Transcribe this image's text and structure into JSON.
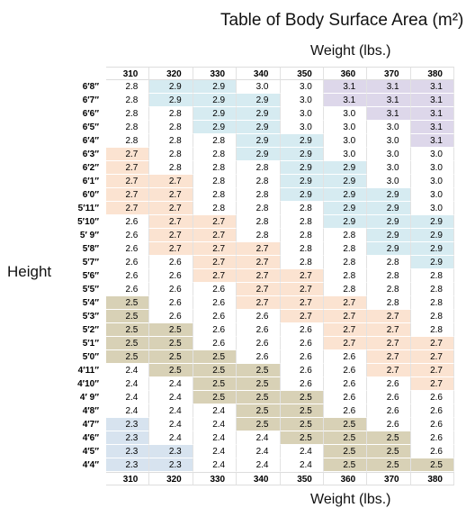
{
  "title": "Table of Body Surface Area (m²)",
  "weight_label_top": "Weight (lbs.)",
  "weight_label_bottom": "Weight (lbs.)",
  "height_label": "Height",
  "table": {
    "columns": [
      "310",
      "320",
      "330",
      "340",
      "350",
      "360",
      "370",
      "380"
    ],
    "row_labels": [
      "6′8″",
      "6′7″",
      "6′6″",
      "6′5″",
      "6′4″",
      "6′3″",
      "6′2″",
      "6′1″",
      "6′0″",
      "5′11″",
      "5′10″",
      "5′ 9″",
      "5′8″",
      "5′7″",
      "5′6″",
      "5′5″",
      "5′4″",
      "5′3″",
      "5′2″",
      "5′1″",
      "5′0″",
      "4′11″",
      "4′10″",
      "4′ 9″",
      "4′8″",
      "4′7″",
      "4′6″",
      "4′5″",
      "4′4″"
    ],
    "rows": [
      [
        "2.8",
        "2.9",
        "2.9",
        "3.0",
        "3.0",
        "3.1",
        "3.1",
        "3.1"
      ],
      [
        "2.8",
        "2.9",
        "2.9",
        "2.9",
        "3.0",
        "3.1",
        "3.1",
        "3.1"
      ],
      [
        "2.8",
        "2.8",
        "2.9",
        "2.9",
        "3.0",
        "3.0",
        "3.1",
        "3.1"
      ],
      [
        "2.8",
        "2.8",
        "2.9",
        "2.9",
        "3.0",
        "3.0",
        "3.0",
        "3.1"
      ],
      [
        "2.8",
        "2.8",
        "2.8",
        "2.9",
        "2.9",
        "3.0",
        "3.0",
        "3.1"
      ],
      [
        "2.7",
        "2.8",
        "2.8",
        "2.9",
        "2.9",
        "3.0",
        "3.0",
        "3.0"
      ],
      [
        "2.7",
        "2.8",
        "2.8",
        "2.8",
        "2.9",
        "2.9",
        "3.0",
        "3.0"
      ],
      [
        "2.7",
        "2.7",
        "2.8",
        "2.8",
        "2.9",
        "2.9",
        "3.0",
        "3.0"
      ],
      [
        "2.7",
        "2.7",
        "2.8",
        "2.8",
        "2.9",
        "2.9",
        "2.9",
        "3.0"
      ],
      [
        "2.7",
        "2.7",
        "2.8",
        "2.8",
        "2.8",
        "2.9",
        "2.9",
        "3.0"
      ],
      [
        "2.6",
        "2.7",
        "2.7",
        "2.8",
        "2.8",
        "2.9",
        "2.9",
        "2.9"
      ],
      [
        "2.6",
        "2.7",
        "2.7",
        "2.8",
        "2.8",
        "2.8",
        "2.9",
        "2.9"
      ],
      [
        "2.6",
        "2.7",
        "2.7",
        "2.7",
        "2.8",
        "2.8",
        "2.9",
        "2.9"
      ],
      [
        "2.6",
        "2.6",
        "2.7",
        "2.7",
        "2.8",
        "2.8",
        "2.8",
        "2.9"
      ],
      [
        "2.6",
        "2.6",
        "2.7",
        "2.7",
        "2.7",
        "2.8",
        "2.8",
        "2.8"
      ],
      [
        "2.6",
        "2.6",
        "2.6",
        "2.7",
        "2.7",
        "2.8",
        "2.8",
        "2.8"
      ],
      [
        "2.5",
        "2.6",
        "2.6",
        "2.7",
        "2.7",
        "2.7",
        "2.8",
        "2.8"
      ],
      [
        "2.5",
        "2.6",
        "2.6",
        "2.6",
        "2.7",
        "2.7",
        "2.7",
        "2.8"
      ],
      [
        "2.5",
        "2.5",
        "2.6",
        "2.6",
        "2.6",
        "2.7",
        "2.7",
        "2.8"
      ],
      [
        "2.5",
        "2.5",
        "2.6",
        "2.6",
        "2.6",
        "2.7",
        "2.7",
        "2.7"
      ],
      [
        "2.5",
        "2.5",
        "2.5",
        "2.6",
        "2.6",
        "2.6",
        "2.7",
        "2.7"
      ],
      [
        "2.4",
        "2.5",
        "2.5",
        "2.5",
        "2.6",
        "2.6",
        "2.7",
        "2.7"
      ],
      [
        "2.4",
        "2.4",
        "2.5",
        "2.5",
        "2.6",
        "2.6",
        "2.6",
        "2.7"
      ],
      [
        "2.4",
        "2.4",
        "2.5",
        "2.5",
        "2.5",
        "2.6",
        "2.6",
        "2.6"
      ],
      [
        "2.4",
        "2.4",
        "2.4",
        "2.5",
        "2.5",
        "2.6",
        "2.6",
        "2.6"
      ],
      [
        "2.3",
        "2.4",
        "2.4",
        "2.5",
        "2.5",
        "2.5",
        "2.6",
        "2.6"
      ],
      [
        "2.3",
        "2.4",
        "2.4",
        "2.4",
        "2.5",
        "2.5",
        "2.5",
        "2.6"
      ],
      [
        "2.3",
        "2.3",
        "2.4",
        "2.4",
        "2.4",
        "2.5",
        "2.5",
        "2.6"
      ],
      [
        "2.3",
        "2.3",
        "2.4",
        "2.4",
        "2.4",
        "2.5",
        "2.5",
        "2.5"
      ]
    ],
    "value_colors": {
      "2.3": "#d7e3ef",
      "2.4": "#ffffff",
      "2.5": "#d8d1b6",
      "2.6": "#ffffff",
      "2.7": "#fbe3d1",
      "2.8": "#ffffff",
      "2.9": "#d6ebf1",
      "3.0": "#ffffff",
      "3.1": "#ddd7ea"
    }
  }
}
